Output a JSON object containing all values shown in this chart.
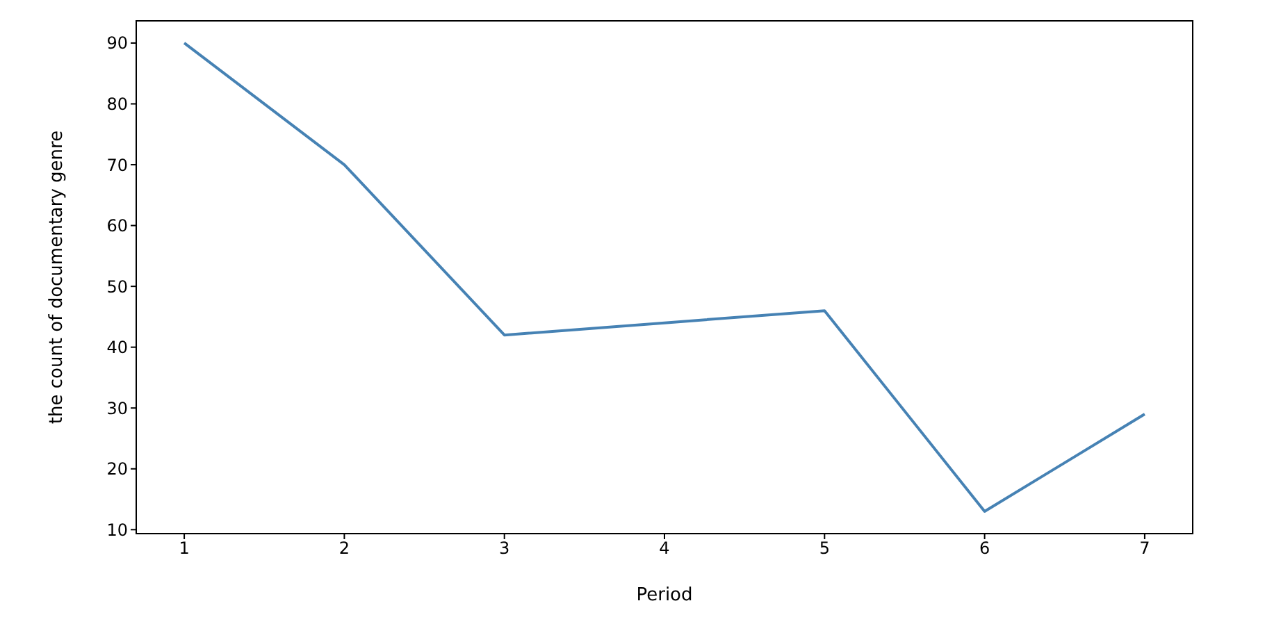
{
  "chart_data": {
    "type": "line",
    "xlabel": "Period",
    "ylabel": "the count of documentary genre",
    "x": [
      1,
      2,
      3,
      4,
      5,
      6,
      7
    ],
    "series": [
      {
        "color": "#4682b4",
        "values": [
          90,
          70,
          42,
          44,
          46,
          13,
          29
        ]
      }
    ],
    "xlim": [
      0.7,
      7.3
    ],
    "xticks": [
      1,
      2,
      3,
      4,
      5,
      6,
      7
    ],
    "ylim": [
      9.35,
      93.65
    ],
    "yticks": [
      10,
      20,
      30,
      40,
      50,
      60,
      70,
      80,
      90
    ],
    "grid": false,
    "legend": false,
    "marker": "none",
    "line_style": "solid"
  }
}
